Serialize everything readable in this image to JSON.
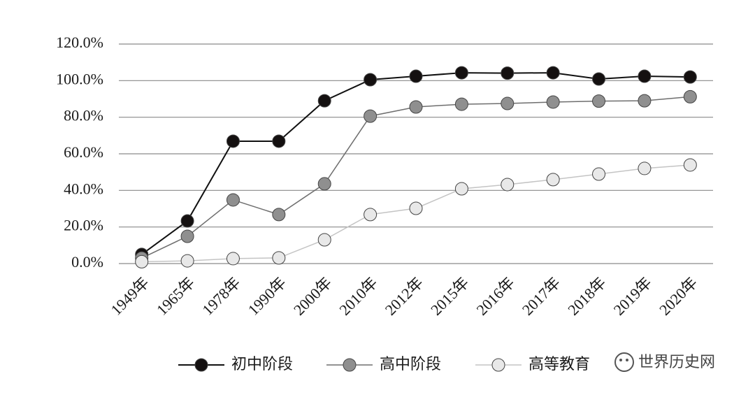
{
  "chart_data": {
    "type": "line",
    "categories": [
      "1949年",
      "1965年",
      "1978年",
      "1990年",
      "2000年",
      "2010年",
      "2012年",
      "2015年",
      "2016年",
      "2017年",
      "2018年",
      "2019年",
      "2020年"
    ],
    "series": [
      {
        "name": "初中阶段",
        "color": "#141010",
        "line_color": "#111111",
        "values": [
          5.0,
          23.3,
          66.9,
          66.9,
          89.0,
          100.5,
          102.4,
          104.3,
          104.1,
          104.3,
          100.9,
          102.4,
          102.0
        ]
      },
      {
        "name": "高中阶段",
        "color": "#8f8f8f",
        "line_color": "#6e6e6e",
        "values": [
          3.0,
          14.9,
          34.8,
          26.8,
          43.6,
          80.6,
          85.6,
          87.1,
          87.5,
          88.3,
          88.8,
          89.0,
          91.2
        ]
      },
      {
        "name": "高等教育",
        "color": "#e8e8e8",
        "line_color": "#c4c4c4",
        "values": [
          1.0,
          1.5,
          2.7,
          3.1,
          13.0,
          26.8,
          30.2,
          40.9,
          43.2,
          45.9,
          48.9,
          52.0,
          53.9
        ]
      }
    ],
    "ylim": [
      0,
      120
    ],
    "yticks": [
      {
        "value": 0,
        "label": "0.0%"
      },
      {
        "value": 20,
        "label": "20.0%"
      },
      {
        "value": 40,
        "label": "40.0%"
      },
      {
        "value": 60,
        "label": "60.0%"
      },
      {
        "value": 80,
        "label": "80.0%"
      },
      {
        "value": 100,
        "label": "100.0%"
      },
      {
        "value": 120,
        "label": "120.0%"
      }
    ],
    "grid": true,
    "legend": "bottom",
    "watermark": "世界历史网"
  }
}
